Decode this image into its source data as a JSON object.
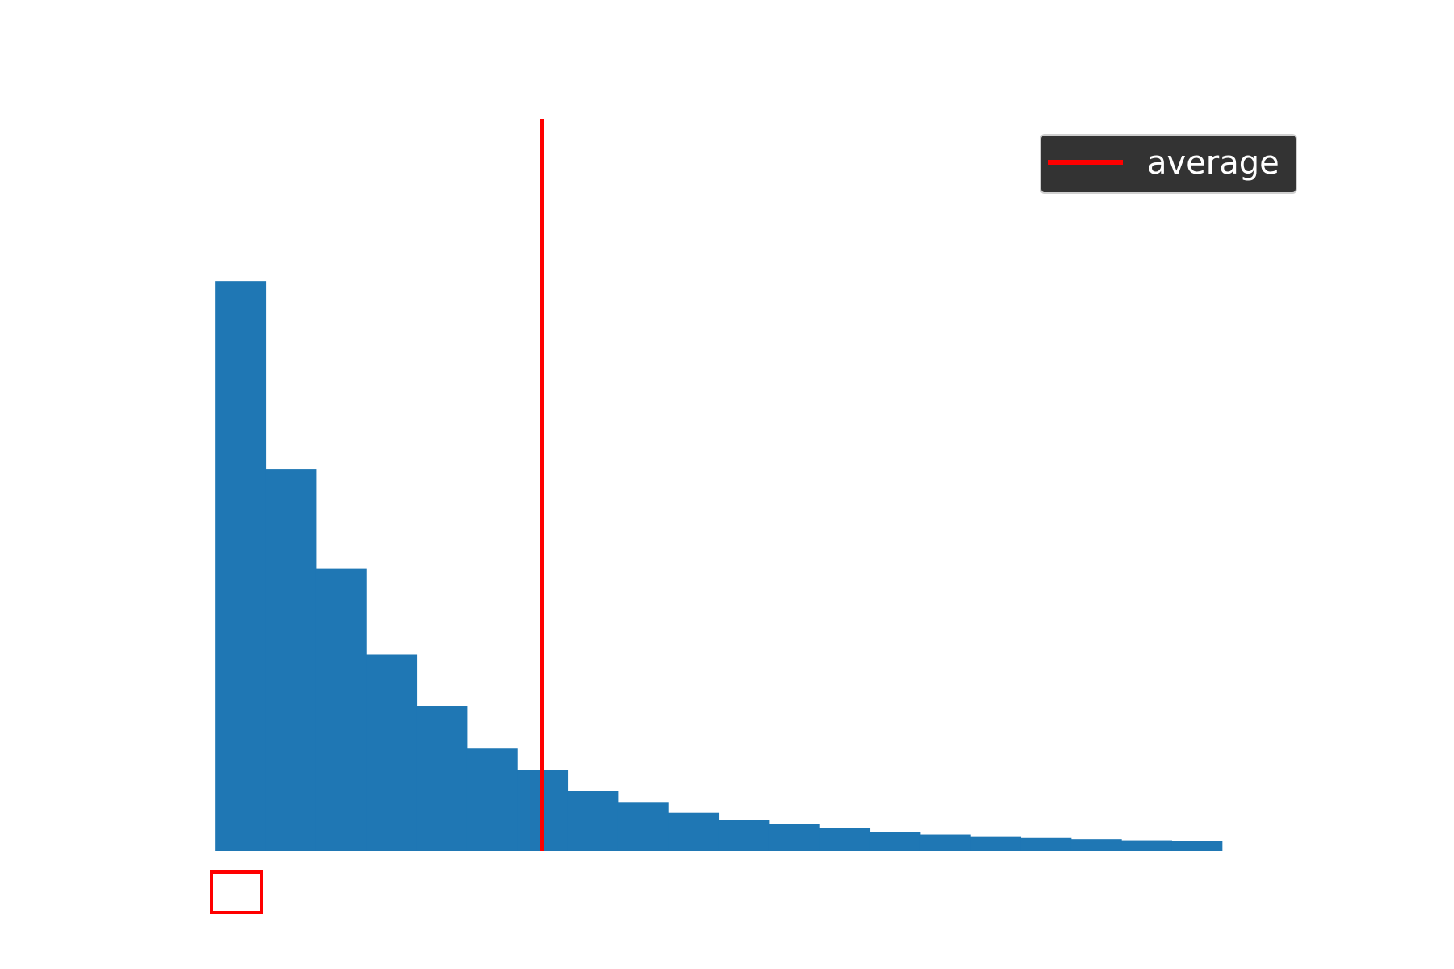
{
  "chart_data": {
    "type": "bar",
    "x_bin_edges": [
      0,
      1,
      2,
      3,
      4,
      5,
      6,
      7,
      8,
      9,
      10,
      11,
      12,
      13,
      14,
      15,
      16,
      17,
      18,
      19,
      20
    ],
    "values": [
      100,
      67,
      49.5,
      34.5,
      25.5,
      18.1,
      14.2,
      10.6,
      8.6,
      6.7,
      5.4,
      4.8,
      4.0,
      3.4,
      2.9,
      2.6,
      2.3,
      2.1,
      1.9,
      1.7
    ],
    "average": 6.5,
    "xlim": [
      -0.5,
      21.4
    ],
    "ylim": [
      0,
      128.5
    ],
    "title": "",
    "xlabel": "",
    "ylabel": "",
    "grid": false,
    "colors": {
      "bars": "#1f77b4",
      "average_line": "#ff0000",
      "legend_background": "#333333",
      "legend_text": "#ffffff",
      "marker_box": "#ff0000"
    },
    "legend": {
      "placement": "top-right",
      "entries": [
        {
          "label": "average",
          "color": "#ff0000",
          "kind": "line"
        }
      ]
    }
  }
}
